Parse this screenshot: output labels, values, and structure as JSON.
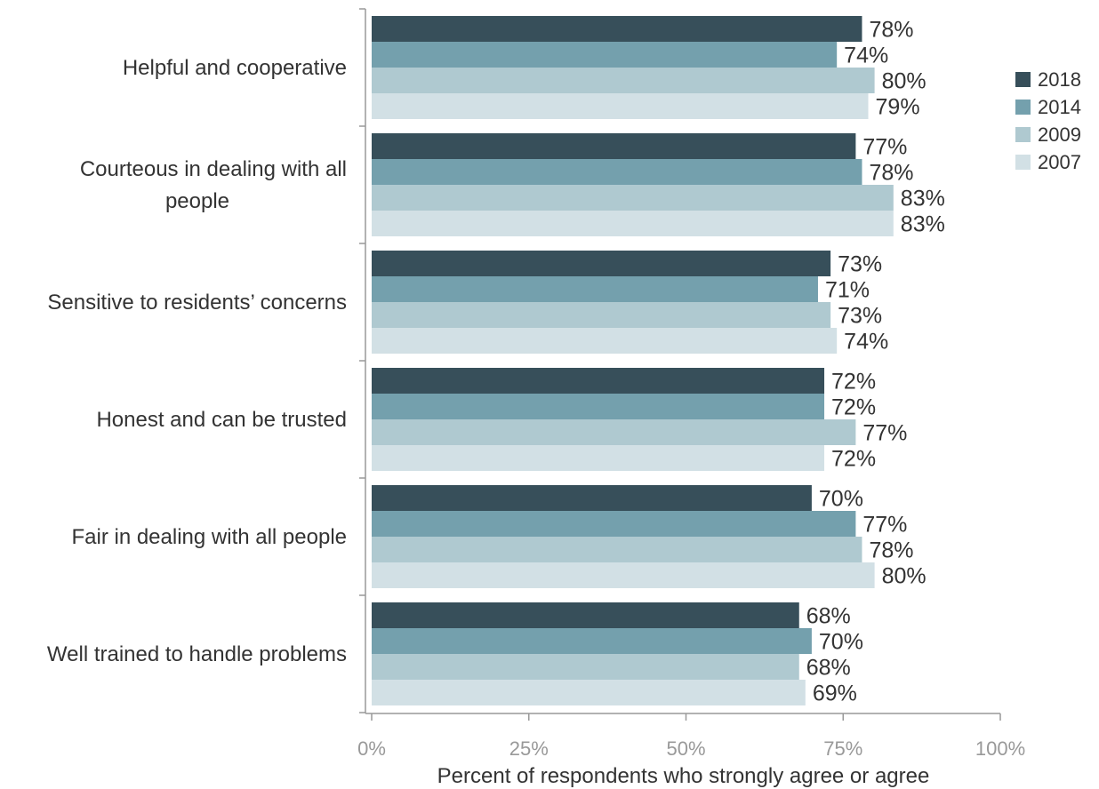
{
  "chart_data": {
    "type": "bar",
    "orientation": "horizontal",
    "categories": [
      [
        "Helpful and cooperative"
      ],
      [
        "Courteous in dealing with all",
        "people"
      ],
      [
        "Sensitive to residents’ concerns"
      ],
      [
        "Honest and can be trusted"
      ],
      [
        "Fair in dealing with all people"
      ],
      [
        "Well trained to handle problems"
      ]
    ],
    "series": [
      {
        "name": "2018",
        "color": "#374f5a",
        "values": [
          78,
          77,
          73,
          72,
          70,
          68
        ]
      },
      {
        "name": "2014",
        "color": "#74a0ad",
        "values": [
          74,
          78,
          71,
          72,
          77,
          70
        ]
      },
      {
        "name": "2009",
        "color": "#afc9d0",
        "values": [
          80,
          83,
          73,
          77,
          78,
          68
        ]
      },
      {
        "name": "2007",
        "color": "#d2e0e5",
        "values": [
          79,
          83,
          74,
          72,
          80,
          69
        ]
      }
    ],
    "value_suffix": "%",
    "xlabel": "Percent of respondents who strongly agree or agree",
    "xlim": [
      0,
      100
    ],
    "xticks": [
      0,
      25,
      50,
      75,
      100
    ],
    "xtick_labels": [
      "0%",
      "25%",
      "50%",
      "75%",
      "100%"
    ],
    "legend_position": "right",
    "grid": false
  }
}
